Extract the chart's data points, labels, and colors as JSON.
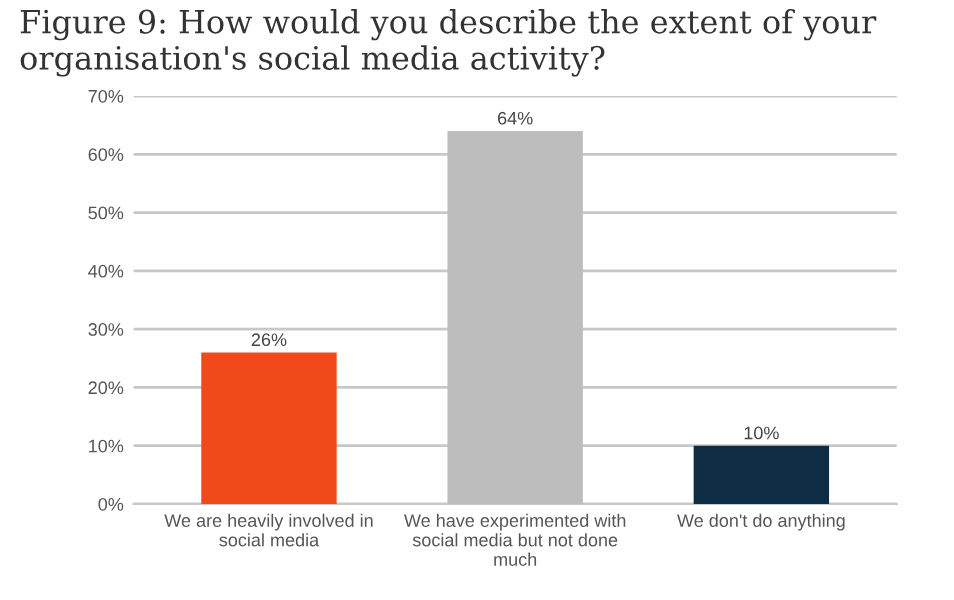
{
  "chart_data": {
    "type": "bar",
    "title": "Figure 9: How would you describe the extent of your organisation's social media activity?",
    "categories": [
      "We are heavily involved in social media",
      "We have experimented with social media but not done much",
      "We don't do anything"
    ],
    "values": [
      26,
      64,
      10
    ],
    "colors": [
      "#f04a1a",
      "#bdbdbd",
      "#0e2d45"
    ],
    "value_labels": [
      "26%",
      "64%",
      "10%"
    ],
    "ylim": [
      0,
      70
    ],
    "yticks": [
      {
        "value": 0,
        "label": "0%"
      },
      {
        "value": 10,
        "label": "10%"
      },
      {
        "value": 20,
        "label": "20%"
      },
      {
        "value": 30,
        "label": "30%"
      },
      {
        "value": 40,
        "label": "40%"
      },
      {
        "value": 50,
        "label": "50%"
      },
      {
        "value": 60,
        "label": "60%"
      },
      {
        "value": 70,
        "label": "70%"
      }
    ],
    "grid": "y",
    "legend": false
  }
}
